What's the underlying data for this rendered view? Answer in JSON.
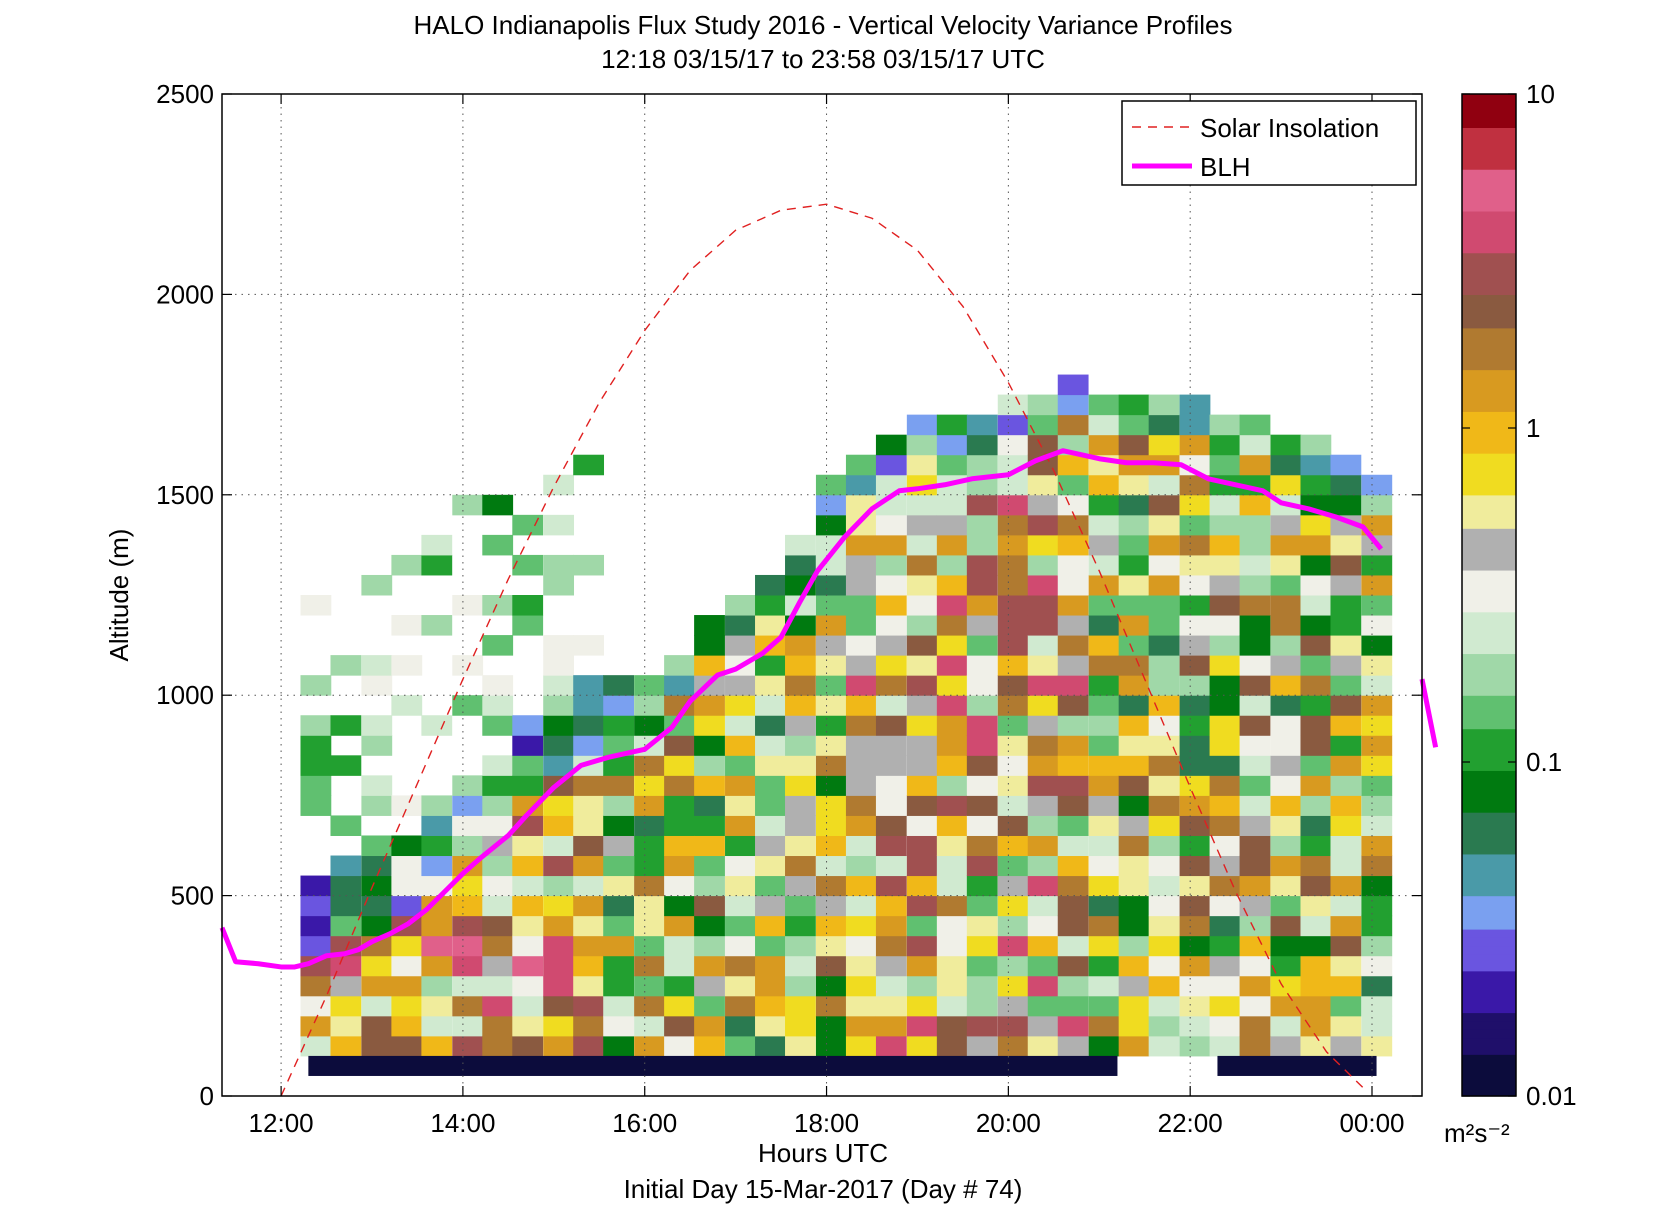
{
  "chart_data": {
    "type": "heatmap",
    "title": "HALO Indianapolis Flux Study 2016 - Vertical Velocity Variance Profiles",
    "subtitle": "12:18 03/15/17 to 23:58 03/15/17  UTC",
    "xlabel": "Hours UTC",
    "xlabel_note": "Initial Day 15-Mar-2017 (Day # 74)",
    "ylabel": "Altitude (m)",
    "xlim": [
      11.35,
      24.55
    ],
    "ylim": [
      0,
      2500
    ],
    "x_ticks": [
      12,
      14,
      16,
      18,
      20,
      22,
      24
    ],
    "x_tick_labels": [
      "12:00",
      "14:00",
      "16:00",
      "18:00",
      "20:00",
      "22:00",
      "00:00"
    ],
    "y_ticks": [
      0,
      500,
      1000,
      1500,
      2000,
      2500
    ],
    "y_tick_labels": [
      "0",
      "500",
      "1000",
      "1500",
      "2000",
      "2500"
    ],
    "grid": true,
    "legend_position": "top-right",
    "colorbar": {
      "scale": "log",
      "range": [
        0.01,
        10
      ],
      "ticks": [
        0.01,
        0.1,
        1,
        10
      ],
      "tick_labels": [
        "0.01",
        "0.1",
        "1",
        "10"
      ],
      "unit_label": "m²s⁻²"
    },
    "colorbar_colors": [
      "#0c0c3c",
      "#1f0f6a",
      "#3a18a8",
      "#6a55e0",
      "#7aa0f0",
      "#4a9aa8",
      "#2a7a50",
      "#007a10",
      "#22a030",
      "#60c070",
      "#a0d8a8",
      "#d0ead0",
      "#f0f0e8",
      "#b0b0b0",
      "#f0ec9c",
      "#f0dc20",
      "#f0b818",
      "#d89a20",
      "#b07a30",
      "#8a5a40",
      "#a05050",
      "#d04a70",
      "#e0608a",
      "#c03040",
      "#900010"
    ],
    "heatmap": {
      "description_cells": "Per-profile vertical velocity variance (m^2 s^-2) bins, x = hour UTC, y = altitude (m)",
      "columns_x": [
        12.38,
        12.71,
        13.05,
        13.38,
        13.71,
        14.05,
        14.38,
        14.71,
        15.05,
        15.38,
        15.71,
        16.05,
        16.38,
        16.71,
        17.05,
        17.38,
        17.71,
        18.05,
        18.38,
        18.71,
        19.05,
        19.38,
        19.71,
        20.05,
        20.38,
        20.71,
        21.05,
        21.38,
        21.71,
        22.05,
        22.38,
        22.71,
        23.05,
        23.38,
        23.71,
        24.05
      ]
    },
    "solar_insolation": {
      "name": "Solar Insolation",
      "color": "#e02020",
      "style": "dashed",
      "x": [
        12.0,
        12.5,
        13.0,
        13.5,
        14.0,
        14.5,
        15.0,
        15.5,
        16.0,
        16.5,
        17.0,
        17.5,
        18.0,
        18.5,
        19.0,
        19.5,
        20.0,
        20.5,
        21.0,
        21.5,
        22.0,
        22.5,
        23.0,
        23.5,
        23.95
      ],
      "y": [
        0,
        250,
        520,
        780,
        1040,
        1290,
        1520,
        1730,
        1910,
        2060,
        2160,
        2210,
        2225,
        2190,
        2110,
        1970,
        1780,
        1560,
        1310,
        1040,
        770,
        510,
        280,
        110,
        10
      ]
    },
    "blh": {
      "name": "BLH",
      "color": "#ff00ff",
      "x": [
        11.35,
        11.5,
        11.75,
        12.0,
        12.15,
        12.3,
        12.5,
        12.7,
        12.85,
        13.0,
        13.2,
        13.4,
        13.6,
        13.8,
        14.0,
        14.2,
        14.5,
        14.7,
        15.0,
        15.3,
        15.6,
        16.0,
        16.3,
        16.5,
        16.8,
        17.0,
        17.3,
        17.5,
        17.7,
        17.9,
        18.2,
        18.5,
        18.8,
        19.0,
        19.3,
        19.6,
        20.0,
        20.3,
        20.6,
        21.0,
        21.3,
        21.6,
        21.9,
        22.2,
        22.5,
        22.8,
        23.0,
        23.3,
        23.6,
        23.9,
        24.1
      ],
      "y": [
        420,
        335,
        330,
        322,
        322,
        330,
        350,
        355,
        365,
        385,
        405,
        430,
        465,
        510,
        555,
        595,
        650,
        700,
        770,
        825,
        845,
        865,
        920,
        985,
        1050,
        1065,
        1105,
        1145,
        1230,
        1310,
        1395,
        1465,
        1510,
        1515,
        1525,
        1540,
        1550,
        1585,
        1610,
        1590,
        1580,
        1580,
        1575,
        1540,
        1525,
        1510,
        1480,
        1465,
        1445,
        1420,
        1365
      ]
    },
    "blh_segment2": {
      "x": [
        24.55,
        24.7
      ],
      "y": [
        1040,
        870
      ]
    },
    "legend": [
      {
        "label": "Solar Insolation",
        "style": "dashed",
        "color": "#e02020"
      },
      {
        "label": "BLH",
        "style": "solid",
        "color": "#ff00ff"
      }
    ]
  }
}
